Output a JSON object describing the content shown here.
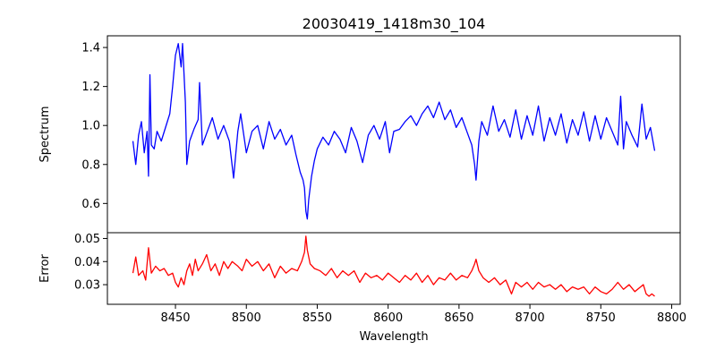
{
  "chart_data": [
    {
      "type": "line",
      "title": "20030419_1418m30_104",
      "xlabel": "",
      "ylabel": "Spectrum",
      "xlim": [
        8402,
        8806
      ],
      "ylim": [
        0.45,
        1.46
      ],
      "yticks": [
        0.6,
        0.8,
        1.0,
        1.2,
        1.4
      ],
      "yticklabels": [
        "0.6",
        "0.8",
        "1.0",
        "1.2",
        "1.4"
      ],
      "line_color": "#0000ff",
      "series": [
        {
          "points": [
            [
              8420,
              0.92
            ],
            [
              8422,
              0.8
            ],
            [
              8424,
              0.95
            ],
            [
              8426,
              1.02
            ],
            [
              8428,
              0.86
            ],
            [
              8430,
              0.97
            ],
            [
              8431,
              0.74
            ],
            [
              8432,
              1.26
            ],
            [
              8433,
              0.9
            ],
            [
              8435,
              0.88
            ],
            [
              8437,
              0.97
            ],
            [
              8440,
              0.92
            ],
            [
              8443,
              0.99
            ],
            [
              8446,
              1.06
            ],
            [
              8448,
              1.2
            ],
            [
              8450,
              1.36
            ],
            [
              8452,
              1.42
            ],
            [
              8454,
              1.3
            ],
            [
              8455,
              1.42
            ],
            [
              8457,
              1.12
            ],
            [
              8458,
              0.8
            ],
            [
              8460,
              0.92
            ],
            [
              8463,
              0.98
            ],
            [
              8466,
              1.03
            ],
            [
              8467,
              1.22
            ],
            [
              8469,
              0.9
            ],
            [
              8472,
              0.96
            ],
            [
              8476,
              1.04
            ],
            [
              8480,
              0.93
            ],
            [
              8484,
              1.0
            ],
            [
              8488,
              0.92
            ],
            [
              8491,
              0.73
            ],
            [
              8494,
              0.97
            ],
            [
              8496,
              1.06
            ],
            [
              8500,
              0.86
            ],
            [
              8504,
              0.97
            ],
            [
              8508,
              1.0
            ],
            [
              8512,
              0.88
            ],
            [
              8516,
              1.02
            ],
            [
              8520,
              0.93
            ],
            [
              8524,
              0.98
            ],
            [
              8528,
              0.9
            ],
            [
              8532,
              0.95
            ],
            [
              8535,
              0.85
            ],
            [
              8538,
              0.76
            ],
            [
              8540,
              0.72
            ],
            [
              8541,
              0.68
            ],
            [
              8542,
              0.56
            ],
            [
              8543,
              0.52
            ],
            [
              8544,
              0.62
            ],
            [
              8546,
              0.74
            ],
            [
              8548,
              0.82
            ],
            [
              8550,
              0.88
            ],
            [
              8554,
              0.94
            ],
            [
              8558,
              0.9
            ],
            [
              8562,
              0.97
            ],
            [
              8566,
              0.93
            ],
            [
              8570,
              0.86
            ],
            [
              8574,
              0.99
            ],
            [
              8578,
              0.92
            ],
            [
              8582,
              0.81
            ],
            [
              8586,
              0.95
            ],
            [
              8590,
              1.0
            ],
            [
              8594,
              0.93
            ],
            [
              8598,
              1.02
            ],
            [
              8601,
              0.86
            ],
            [
              8604,
              0.97
            ],
            [
              8608,
              0.98
            ],
            [
              8612,
              1.02
            ],
            [
              8616,
              1.05
            ],
            [
              8620,
              1.0
            ],
            [
              8624,
              1.06
            ],
            [
              8628,
              1.1
            ],
            [
              8632,
              1.04
            ],
            [
              8636,
              1.12
            ],
            [
              8640,
              1.03
            ],
            [
              8644,
              1.08
            ],
            [
              8648,
              0.99
            ],
            [
              8652,
              1.04
            ],
            [
              8656,
              0.96
            ],
            [
              8659,
              0.9
            ],
            [
              8661,
              0.8
            ],
            [
              8662,
              0.72
            ],
            [
              8664,
              0.92
            ],
            [
              8666,
              1.02
            ],
            [
              8670,
              0.95
            ],
            [
              8674,
              1.1
            ],
            [
              8678,
              0.97
            ],
            [
              8682,
              1.03
            ],
            [
              8686,
              0.94
            ],
            [
              8690,
              1.08
            ],
            [
              8694,
              0.93
            ],
            [
              8698,
              1.05
            ],
            [
              8702,
              0.95
            ],
            [
              8706,
              1.1
            ],
            [
              8710,
              0.92
            ],
            [
              8714,
              1.04
            ],
            [
              8718,
              0.95
            ],
            [
              8722,
              1.06
            ],
            [
              8726,
              0.91
            ],
            [
              8730,
              1.03
            ],
            [
              8734,
              0.95
            ],
            [
              8738,
              1.07
            ],
            [
              8742,
              0.92
            ],
            [
              8746,
              1.05
            ],
            [
              8750,
              0.93
            ],
            [
              8754,
              1.04
            ],
            [
              8758,
              0.97
            ],
            [
              8762,
              0.9
            ],
            [
              8764,
              1.15
            ],
            [
              8766,
              0.88
            ],
            [
              8768,
              1.02
            ],
            [
              8772,
              0.95
            ],
            [
              8776,
              0.89
            ],
            [
              8779,
              1.11
            ],
            [
              8782,
              0.93
            ],
            [
              8785,
              0.99
            ],
            [
              8788,
              0.87
            ]
          ]
        }
      ]
    },
    {
      "type": "line",
      "title": "",
      "xlabel": "Wavelength",
      "ylabel": "Error",
      "xlim": [
        8402,
        8806
      ],
      "ylim": [
        0.0215,
        0.0525
      ],
      "xticks": [
        8450,
        8500,
        8550,
        8600,
        8650,
        8700,
        8750,
        8800
      ],
      "xticklabels": [
        "8450",
        "8500",
        "8550",
        "8600",
        "8650",
        "8700",
        "8750",
        "8800"
      ],
      "yticks": [
        0.03,
        0.04,
        0.05
      ],
      "yticklabels": [
        "0.03",
        "0.04",
        "0.05"
      ],
      "line_color": "#ff0000",
      "series": [
        {
          "points": [
            [
              8420,
              0.035
            ],
            [
              8422,
              0.042
            ],
            [
              8424,
              0.034
            ],
            [
              8427,
              0.036
            ],
            [
              8429,
              0.032
            ],
            [
              8431,
              0.046
            ],
            [
              8433,
              0.035
            ],
            [
              8436,
              0.038
            ],
            [
              8439,
              0.036
            ],
            [
              8442,
              0.037
            ],
            [
              8445,
              0.034
            ],
            [
              8448,
              0.035
            ],
            [
              8450,
              0.031
            ],
            [
              8452,
              0.029
            ],
            [
              8454,
              0.033
            ],
            [
              8456,
              0.03
            ],
            [
              8458,
              0.036
            ],
            [
              8460,
              0.039
            ],
            [
              8462,
              0.034
            ],
            [
              8464,
              0.041
            ],
            [
              8466,
              0.036
            ],
            [
              8469,
              0.039
            ],
            [
              8472,
              0.043
            ],
            [
              8475,
              0.036
            ],
            [
              8478,
              0.039
            ],
            [
              8481,
              0.034
            ],
            [
              8484,
              0.04
            ],
            [
              8487,
              0.037
            ],
            [
              8490,
              0.04
            ],
            [
              8494,
              0.038
            ],
            [
              8497,
              0.036
            ],
            [
              8500,
              0.041
            ],
            [
              8504,
              0.038
            ],
            [
              8508,
              0.04
            ],
            [
              8512,
              0.036
            ],
            [
              8516,
              0.039
            ],
            [
              8520,
              0.033
            ],
            [
              8524,
              0.038
            ],
            [
              8528,
              0.035
            ],
            [
              8532,
              0.037
            ],
            [
              8536,
              0.036
            ],
            [
              8539,
              0.04
            ],
            [
              8541,
              0.044
            ],
            [
              8542,
              0.051
            ],
            [
              8543,
              0.045
            ],
            [
              8545,
              0.039
            ],
            [
              8548,
              0.037
            ],
            [
              8552,
              0.036
            ],
            [
              8556,
              0.034
            ],
            [
              8560,
              0.037
            ],
            [
              8564,
              0.033
            ],
            [
              8568,
              0.036
            ],
            [
              8572,
              0.034
            ],
            [
              8576,
              0.036
            ],
            [
              8580,
              0.031
            ],
            [
              8584,
              0.035
            ],
            [
              8588,
              0.033
            ],
            [
              8592,
              0.034
            ],
            [
              8596,
              0.032
            ],
            [
              8600,
              0.035
            ],
            [
              8604,
              0.033
            ],
            [
              8608,
              0.031
            ],
            [
              8612,
              0.034
            ],
            [
              8616,
              0.032
            ],
            [
              8620,
              0.035
            ],
            [
              8624,
              0.031
            ],
            [
              8628,
              0.034
            ],
            [
              8632,
              0.03
            ],
            [
              8636,
              0.033
            ],
            [
              8640,
              0.032
            ],
            [
              8644,
              0.035
            ],
            [
              8648,
              0.032
            ],
            [
              8652,
              0.034
            ],
            [
              8656,
              0.033
            ],
            [
              8659,
              0.036
            ],
            [
              8661,
              0.039
            ],
            [
              8662,
              0.041
            ],
            [
              8664,
              0.036
            ],
            [
              8667,
              0.033
            ],
            [
              8671,
              0.031
            ],
            [
              8675,
              0.033
            ],
            [
              8679,
              0.03
            ],
            [
              8683,
              0.032
            ],
            [
              8687,
              0.026
            ],
            [
              8690,
              0.031
            ],
            [
              8694,
              0.029
            ],
            [
              8698,
              0.031
            ],
            [
              8702,
              0.028
            ],
            [
              8706,
              0.031
            ],
            [
              8710,
              0.029
            ],
            [
              8714,
              0.03
            ],
            [
              8718,
              0.028
            ],
            [
              8722,
              0.03
            ],
            [
              8726,
              0.027
            ],
            [
              8730,
              0.029
            ],
            [
              8734,
              0.028
            ],
            [
              8738,
              0.029
            ],
            [
              8742,
              0.026
            ],
            [
              8746,
              0.029
            ],
            [
              8750,
              0.027
            ],
            [
              8754,
              0.026
            ],
            [
              8758,
              0.028
            ],
            [
              8762,
              0.031
            ],
            [
              8766,
              0.028
            ],
            [
              8770,
              0.03
            ],
            [
              8774,
              0.027
            ],
            [
              8778,
              0.029
            ],
            [
              8780,
              0.03
            ],
            [
              8782,
              0.026
            ],
            [
              8784,
              0.025
            ],
            [
              8786,
              0.026
            ],
            [
              8788,
              0.025
            ]
          ]
        }
      ]
    }
  ]
}
